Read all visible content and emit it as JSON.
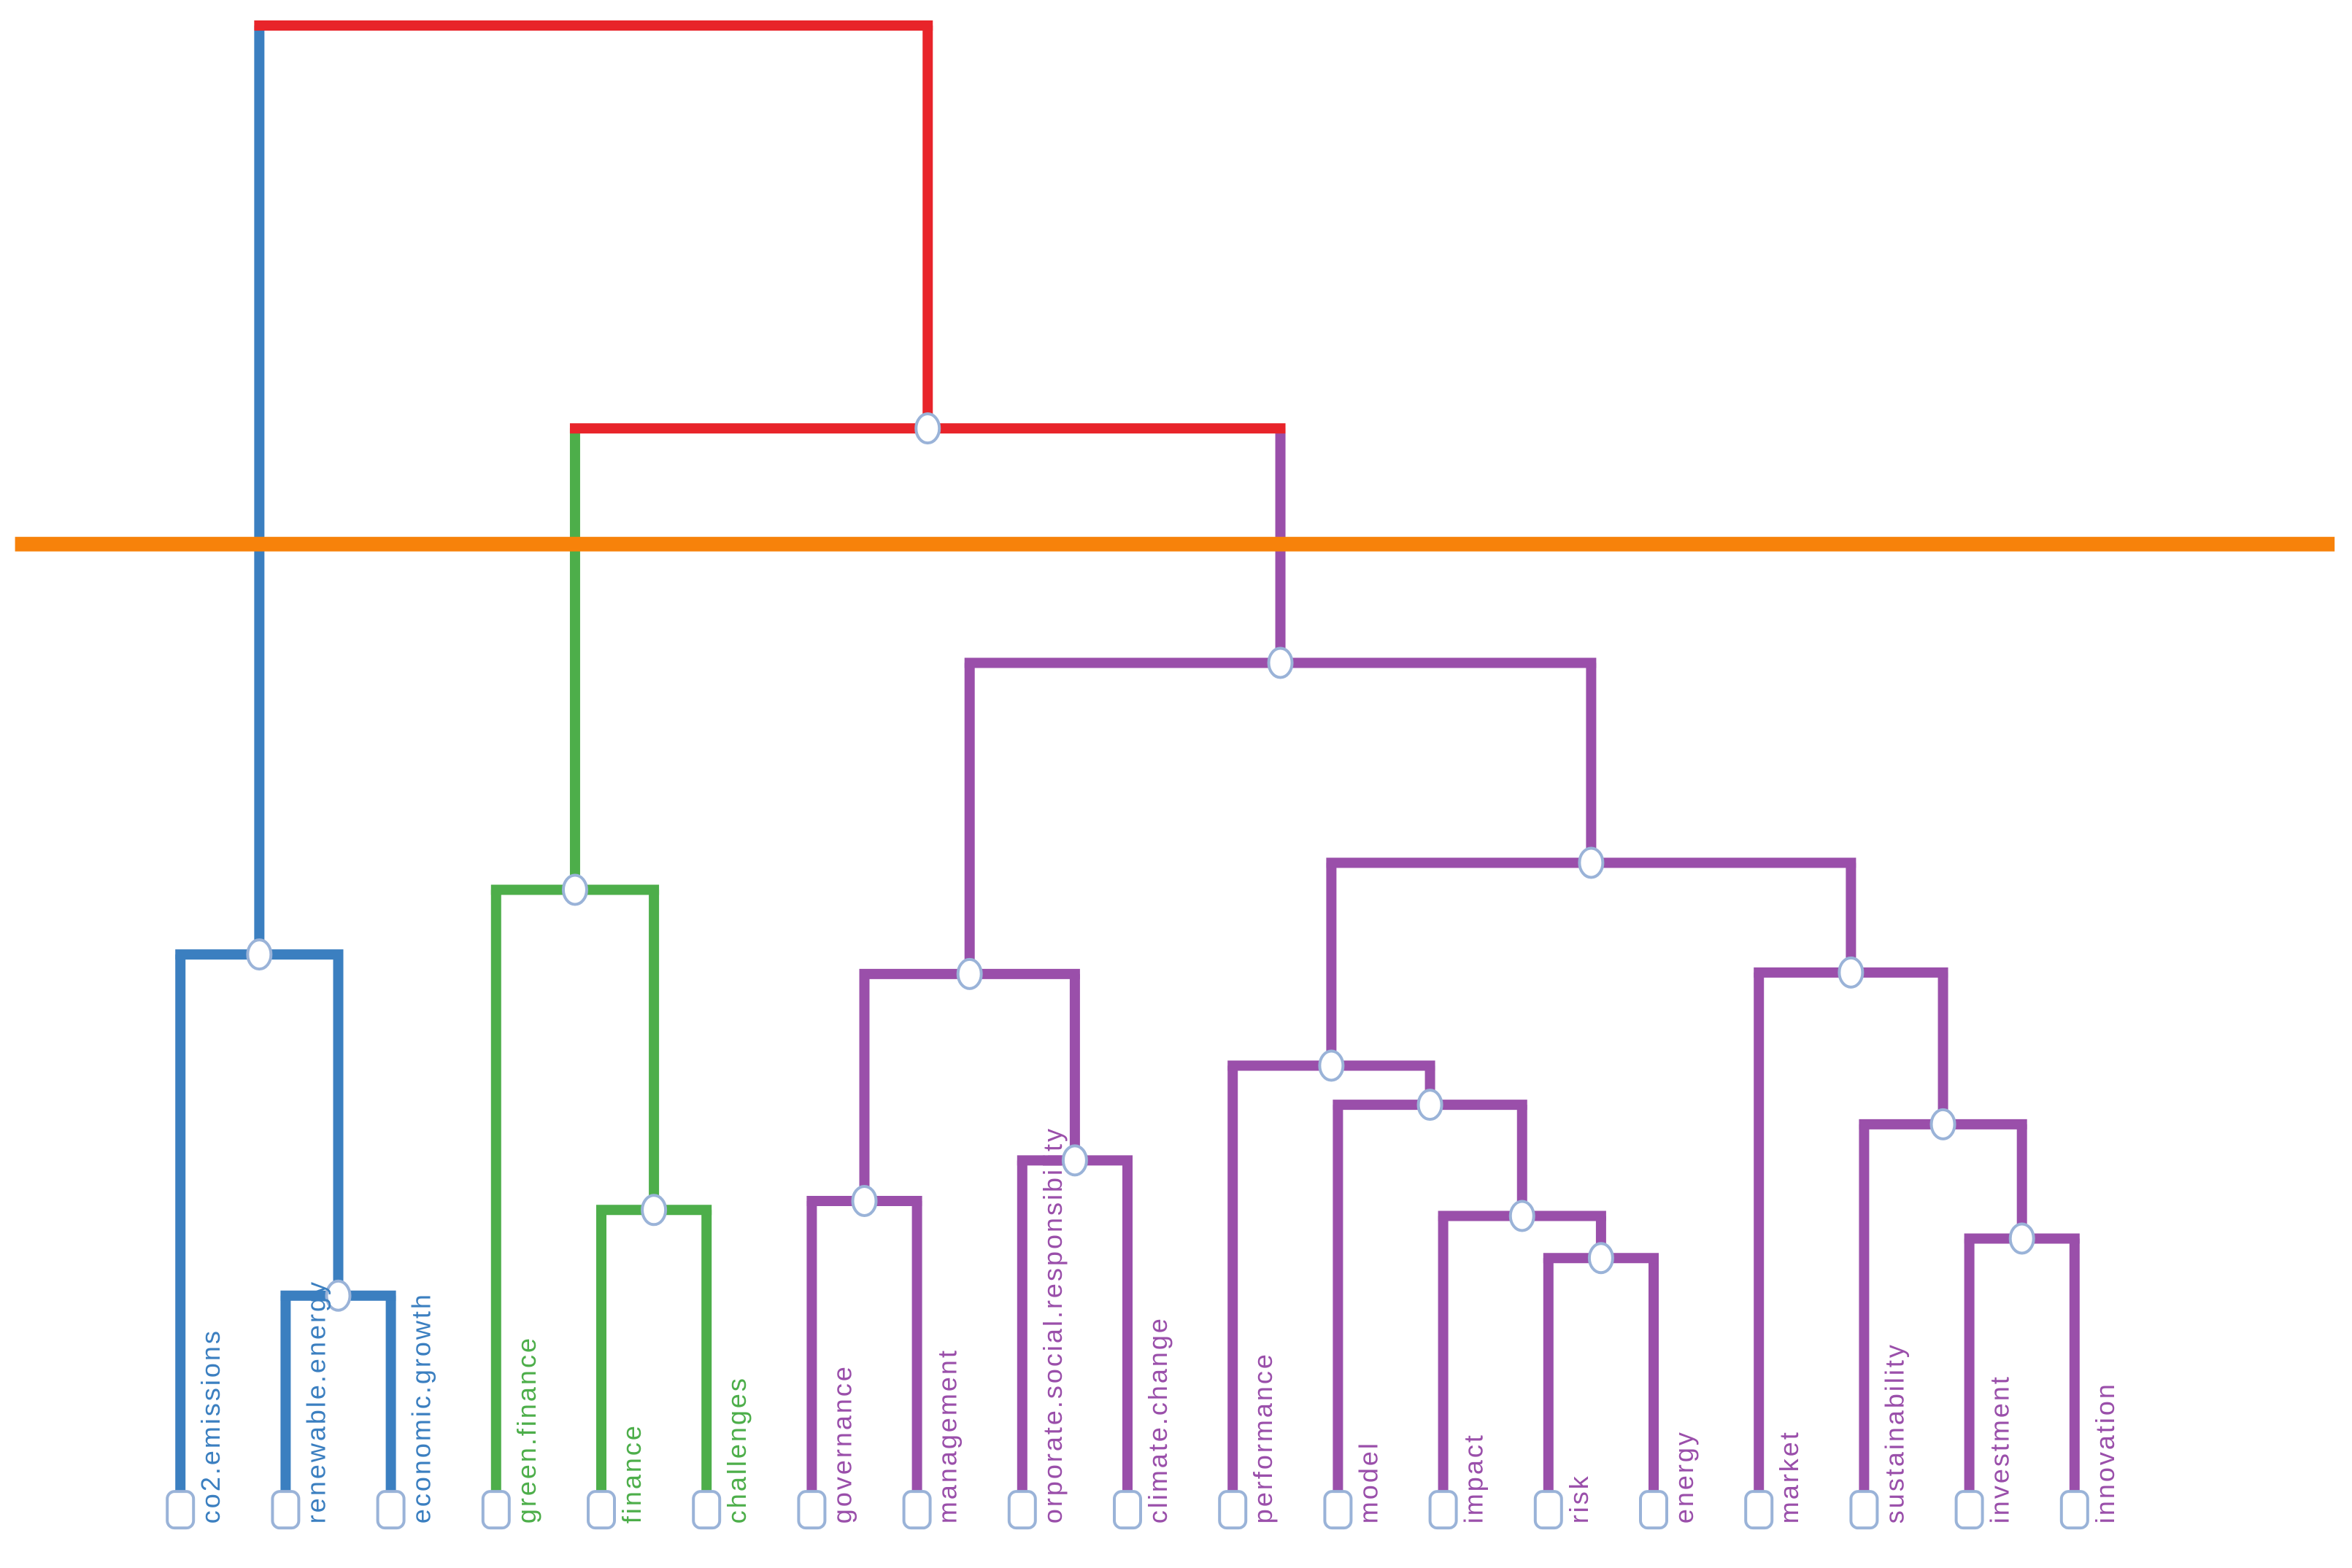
{
  "diagram": {
    "type": "dendrogram",
    "colors": {
      "root": "#e8242a",
      "cut_line": "#f7820a",
      "cluster_blue": "#3b7fc0",
      "cluster_green": "#4dae4a",
      "cluster_purple": "#9a4faa"
    },
    "clusters": [
      {
        "color": "#3b7fc0",
        "leaves": [
          "co2.emissions",
          "renewable.energy",
          "economic.growth"
        ]
      },
      {
        "color": "#4dae4a",
        "leaves": [
          "green.finance",
          "finance",
          "challenges"
        ]
      },
      {
        "color": "#9a4faa",
        "leaves": [
          "governance",
          "management",
          "orporate.social.responsibility",
          "climate.change",
          "performance",
          "model",
          "impact",
          "risk",
          "energy",
          "market",
          "sustainability",
          "investment",
          "innovation"
        ]
      }
    ],
    "leaves": [
      {
        "label": "co2.emissions",
        "color": "#3b7fc0"
      },
      {
        "label": "renewable.energy",
        "color": "#3b7fc0"
      },
      {
        "label": "economic.growth",
        "color": "#3b7fc0"
      },
      {
        "label": "green.finance",
        "color": "#4dae4a"
      },
      {
        "label": "finance",
        "color": "#4dae4a"
      },
      {
        "label": "challenges",
        "color": "#4dae4a"
      },
      {
        "label": "governance",
        "color": "#9a4faa"
      },
      {
        "label": "management",
        "color": "#9a4faa"
      },
      {
        "label": "orporate.social.responsibility",
        "color": "#9a4faa"
      },
      {
        "label": "climate.change",
        "color": "#9a4faa"
      },
      {
        "label": "performance",
        "color": "#9a4faa"
      },
      {
        "label": "model",
        "color": "#9a4faa"
      },
      {
        "label": "impact",
        "color": "#9a4faa"
      },
      {
        "label": "risk",
        "color": "#9a4faa"
      },
      {
        "label": "energy",
        "color": "#9a4faa"
      },
      {
        "label": "market",
        "color": "#9a4faa"
      },
      {
        "label": "sustainability",
        "color": "#9a4faa"
      },
      {
        "label": "investment",
        "color": "#9a4faa"
      },
      {
        "label": "innovation",
        "color": "#9a4faa"
      }
    ]
  }
}
